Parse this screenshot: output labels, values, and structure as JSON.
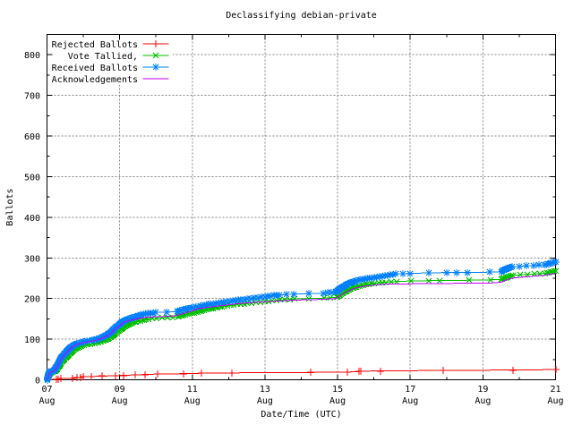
{
  "title": "Declassifying debian-private",
  "chart_data": {
    "type": "line",
    "title": "Declassifying debian-private",
    "xlabel": "Date/Time (UTC)",
    "ylabel": "Ballots",
    "grid": true,
    "legend_position": "top-left",
    "x_axis": {
      "month_label": "Aug",
      "min_day": 7,
      "max_day": 21,
      "major_tick_days": [
        7,
        9,
        11,
        13,
        15,
        17,
        19,
        21
      ],
      "minor_tick_days": [
        8,
        10,
        12,
        14,
        16,
        18,
        20
      ]
    },
    "y_axis": {
      "min": 0,
      "max": 850,
      "major_ticks": [
        0,
        100,
        200,
        300,
        400,
        500,
        600,
        700,
        800
      ],
      "minor_ticks": [
        50,
        150,
        250,
        350,
        450,
        550,
        650,
        750
      ]
    },
    "series": [
      {
        "name": "Rejected Ballots",
        "color": "#ff0000",
        "marker": "plus",
        "marker_time_gap": null,
        "points": [
          [
            7.0,
            0
          ],
          [
            7.26,
            1
          ],
          [
            7.32,
            2
          ],
          [
            7.38,
            3
          ],
          [
            7.71,
            4
          ],
          [
            7.82,
            5
          ],
          [
            7.93,
            6
          ],
          [
            8.0,
            7
          ],
          [
            8.23,
            8
          ],
          [
            8.52,
            9
          ],
          [
            8.89,
            10
          ],
          [
            9.1,
            11
          ],
          [
            9.43,
            12
          ],
          [
            9.69,
            13
          ],
          [
            10.05,
            14
          ],
          [
            10.75,
            15
          ],
          [
            11.25,
            16
          ],
          [
            12.1,
            17
          ],
          [
            14.25,
            18
          ],
          [
            15.26,
            19
          ],
          [
            15.58,
            20
          ],
          [
            15.65,
            21
          ],
          [
            16.17,
            22
          ],
          [
            17.9,
            23
          ],
          [
            19.82,
            24
          ],
          [
            21.0,
            25
          ]
        ]
      },
      {
        "name": "Vote Tallied,",
        "color": "#00c000",
        "marker": "cross",
        "marker_time_gap": 0.28,
        "points": [
          [
            7.0,
            0
          ],
          [
            7.02,
            3
          ],
          [
            7.05,
            10
          ],
          [
            7.08,
            15
          ],
          [
            7.12,
            18
          ],
          [
            7.2,
            20
          ],
          [
            7.26,
            24
          ],
          [
            7.32,
            31
          ],
          [
            7.38,
            40
          ],
          [
            7.47,
            50
          ],
          [
            7.57,
            59
          ],
          [
            7.68,
            69
          ],
          [
            7.82,
            78
          ],
          [
            7.97,
            84
          ],
          [
            8.12,
            87
          ],
          [
            8.32,
            90
          ],
          [
            8.47,
            93
          ],
          [
            8.62,
            98
          ],
          [
            8.77,
            106
          ],
          [
            8.9,
            115
          ],
          [
            9.02,
            123
          ],
          [
            9.14,
            131
          ],
          [
            9.32,
            139
          ],
          [
            9.46,
            143
          ],
          [
            9.62,
            146
          ],
          [
            9.79,
            149
          ],
          [
            10.02,
            151
          ],
          [
            10.32,
            153
          ],
          [
            10.6,
            155
          ],
          [
            10.77,
            159
          ],
          [
            11.0,
            164
          ],
          [
            11.24,
            169
          ],
          [
            11.52,
            175
          ],
          [
            11.89,
            181
          ],
          [
            12.14,
            184
          ],
          [
            12.52,
            188
          ],
          [
            13.0,
            192
          ],
          [
            13.42,
            196
          ],
          [
            13.82,
            199
          ],
          [
            14.22,
            200
          ],
          [
            14.62,
            201
          ],
          [
            14.97,
            203
          ],
          [
            15.12,
            212
          ],
          [
            15.32,
            222
          ],
          [
            15.52,
            229
          ],
          [
            15.72,
            233
          ],
          [
            16.02,
            237
          ],
          [
            16.32,
            240
          ],
          [
            16.62,
            242
          ],
          [
            17.02,
            243
          ],
          [
            17.52,
            244
          ],
          [
            18.02,
            244
          ],
          [
            18.62,
            245
          ],
          [
            19.22,
            246
          ],
          [
            19.52,
            247
          ],
          [
            19.67,
            253
          ],
          [
            19.82,
            257
          ],
          [
            20.02,
            258
          ],
          [
            20.42,
            260
          ],
          [
            20.72,
            262
          ],
          [
            21.0,
            268
          ]
        ]
      },
      {
        "name": "Received Ballots",
        "color": "#0080ff",
        "marker": "asterisk",
        "marker_time_gap": 0.28,
        "points": [
          [
            7.0,
            0
          ],
          [
            7.02,
            5
          ],
          [
            7.04,
            13
          ],
          [
            7.07,
            18
          ],
          [
            7.1,
            20
          ],
          [
            7.18,
            22
          ],
          [
            7.24,
            28
          ],
          [
            7.3,
            38
          ],
          [
            7.36,
            49
          ],
          [
            7.45,
            60
          ],
          [
            7.55,
            70
          ],
          [
            7.66,
            80
          ],
          [
            7.8,
            88
          ],
          [
            7.95,
            92
          ],
          [
            8.1,
            95
          ],
          [
            8.3,
            98
          ],
          [
            8.45,
            102
          ],
          [
            8.6,
            107
          ],
          [
            8.75,
            116
          ],
          [
            8.88,
            128
          ],
          [
            9.0,
            136
          ],
          [
            9.12,
            145
          ],
          [
            9.3,
            151
          ],
          [
            9.44,
            155
          ],
          [
            9.6,
            160
          ],
          [
            9.77,
            163
          ],
          [
            10.0,
            166
          ],
          [
            10.3,
            167
          ],
          [
            10.58,
            168
          ],
          [
            10.75,
            172
          ],
          [
            10.98,
            177
          ],
          [
            11.22,
            181
          ],
          [
            11.5,
            186
          ],
          [
            11.87,
            191
          ],
          [
            12.12,
            194
          ],
          [
            12.5,
            199
          ],
          [
            12.99,
            204
          ],
          [
            13.4,
            209
          ],
          [
            13.8,
            211
          ],
          [
            14.2,
            212
          ],
          [
            14.6,
            213
          ],
          [
            14.95,
            216
          ],
          [
            15.1,
            226
          ],
          [
            15.3,
            237
          ],
          [
            15.5,
            243
          ],
          [
            15.7,
            247
          ],
          [
            16.0,
            252
          ],
          [
            16.3,
            256
          ],
          [
            16.6,
            260
          ],
          [
            17.0,
            262
          ],
          [
            17.5,
            263
          ],
          [
            18.0,
            264
          ],
          [
            18.6,
            264
          ],
          [
            19.2,
            265
          ],
          [
            19.5,
            266
          ],
          [
            19.65,
            273
          ],
          [
            19.8,
            278
          ],
          [
            20.0,
            279
          ],
          [
            20.4,
            281
          ],
          [
            20.7,
            283
          ],
          [
            21.0,
            290
          ]
        ]
      },
      {
        "name": "Acknowledgements",
        "color": "#c000ff",
        "marker": "none",
        "marker_time_gap": null,
        "points": [
          [
            7.0,
            0
          ],
          [
            7.02,
            4
          ],
          [
            7.04,
            11
          ],
          [
            7.07,
            16
          ],
          [
            7.1,
            19
          ],
          [
            7.18,
            21
          ],
          [
            7.24,
            26
          ],
          [
            7.3,
            36
          ],
          [
            7.36,
            47
          ],
          [
            7.45,
            58
          ],
          [
            7.55,
            68
          ],
          [
            7.66,
            78
          ],
          [
            7.8,
            86
          ],
          [
            7.95,
            90
          ],
          [
            8.1,
            93
          ],
          [
            8.3,
            96
          ],
          [
            8.45,
            100
          ],
          [
            8.6,
            105
          ],
          [
            8.75,
            113
          ],
          [
            8.88,
            125
          ],
          [
            9.0,
            133
          ],
          [
            9.12,
            142
          ],
          [
            9.3,
            146
          ],
          [
            9.44,
            149
          ],
          [
            9.6,
            152
          ],
          [
            9.77,
            154
          ],
          [
            10.0,
            155
          ],
          [
            10.3,
            156
          ],
          [
            10.58,
            158
          ],
          [
            10.75,
            163
          ],
          [
            10.98,
            169
          ],
          [
            11.22,
            176
          ],
          [
            11.5,
            179
          ],
          [
            11.87,
            183
          ],
          [
            12.12,
            186
          ],
          [
            12.5,
            189
          ],
          [
            12.99,
            192
          ],
          [
            13.4,
            194
          ],
          [
            13.8,
            196
          ],
          [
            14.2,
            197
          ],
          [
            14.6,
            198
          ],
          [
            14.95,
            200
          ],
          [
            15.1,
            209
          ],
          [
            15.3,
            219
          ],
          [
            15.5,
            226
          ],
          [
            15.7,
            230
          ],
          [
            16.0,
            233
          ],
          [
            16.3,
            235
          ],
          [
            16.6,
            236
          ],
          [
            17.0,
            236
          ],
          [
            17.5,
            237
          ],
          [
            18.0,
            237
          ],
          [
            18.6,
            238
          ],
          [
            19.2,
            238
          ],
          [
            19.5,
            240
          ],
          [
            19.65,
            246
          ],
          [
            19.8,
            250
          ],
          [
            20.0,
            252
          ],
          [
            20.4,
            255
          ],
          [
            20.7,
            257
          ],
          [
            21.0,
            262
          ]
        ]
      }
    ]
  }
}
